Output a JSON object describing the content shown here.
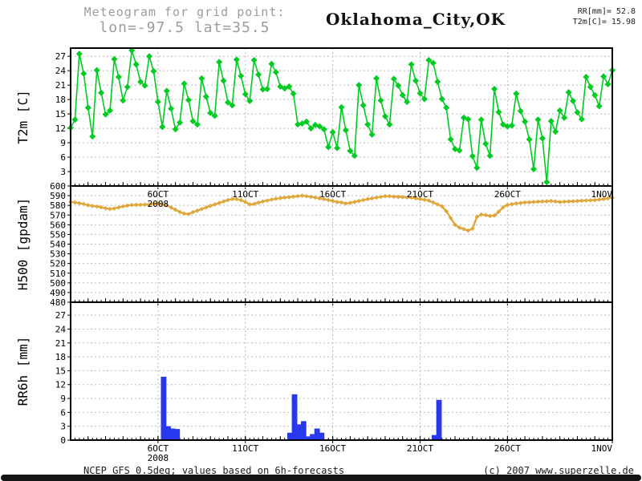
{
  "header": {
    "line1": "Meteogram for grid point:",
    "line2": "lon=-97.5 lat=35.5"
  },
  "title": "Oklahoma_City,OK",
  "readout": {
    "rr": "RR[mm]= 52.8",
    "t2m": "T2m[C]= 15.98"
  },
  "footer": {
    "left": "NCEP GFS 0.5deg; values based on 6h-forecasts",
    "right": "(c) 2007 www.superzelle.de"
  },
  "colors": {
    "t2m": "#00cc22",
    "h500": "#e0a83c",
    "rr6h": "#2838ee",
    "grid": "#b9b9b9",
    "axis": "#000000",
    "header_text": "#9c9c9c"
  },
  "chart_data": {
    "x": {
      "start": "1 OCT 2008 00Z",
      "step_hours": 6,
      "span_days": 31,
      "n_points": 125,
      "ticks": [
        {
          "day": 5,
          "label": "6OCT",
          "sublabel": "2008"
        },
        {
          "day": 10,
          "label": "11OCT"
        },
        {
          "day": 15,
          "label": "16OCT"
        },
        {
          "day": 20,
          "label": "21OCT"
        },
        {
          "day": 25,
          "label": "26OCT"
        },
        {
          "day": 31,
          "label": "1NOV"
        }
      ]
    },
    "panels": [
      {
        "type": "line",
        "name": "T2m",
        "ylabel": "T2m [C]",
        "ylim": [
          0,
          28.7
        ],
        "yticks": [
          3,
          6,
          9,
          12,
          15,
          18,
          21,
          24,
          27
        ],
        "marker": "diamond",
        "grid": true,
        "values": [
          12.1,
          13.8,
          27.5,
          23.4,
          16.3,
          10.3,
          24.1,
          19.4,
          14.9,
          15.7,
          26.4,
          22.7,
          17.8,
          20.6,
          28.2,
          25.3,
          21.7,
          20.9,
          27.0,
          23.9,
          17.5,
          12.3,
          19.8,
          16.1,
          11.8,
          13.2,
          21.3,
          17.9,
          13.5,
          12.8,
          22.4,
          18.6,
          15.2,
          14.6,
          25.8,
          21.9,
          17.4,
          16.8,
          26.3,
          22.9,
          19.1,
          17.7,
          26.2,
          23.2,
          20.1,
          20.2,
          25.4,
          23.7,
          20.7,
          20.3,
          20.7,
          19.2,
          12.8,
          13.0,
          13.4,
          12.0,
          12.7,
          12.4,
          11.8,
          8.1,
          11.2,
          7.9,
          16.4,
          11.6,
          7.3,
          6.3,
          21.0,
          16.8,
          12.8,
          10.7,
          22.4,
          17.8,
          14.5,
          12.8,
          22.3,
          20.9,
          18.9,
          17.5,
          25.3,
          21.9,
          19.3,
          18.1,
          26.2,
          25.6,
          21.7,
          18.1,
          16.3,
          9.7,
          7.7,
          7.4,
          14.2,
          13.9,
          6.2,
          3.8,
          13.8,
          8.8,
          6.3,
          20.2,
          15.4,
          12.8,
          12.4,
          12.6,
          19.2,
          15.6,
          13.4,
          9.7,
          3.5,
          13.8,
          9.9,
          0.8,
          13.5,
          11.3,
          15.7,
          14.2,
          19.5,
          17.7,
          15.3,
          13.9,
          22.7,
          20.6,
          18.9,
          16.6,
          22.8,
          21.2,
          24.1
        ]
      },
      {
        "type": "line",
        "name": "H500",
        "ylabel": "H500 [gpdam]",
        "ylim": [
          480,
          600
        ],
        "yticks": [
          480,
          490,
          500,
          510,
          520,
          530,
          540,
          550,
          560,
          570,
          580,
          590,
          600
        ],
        "marker": "diamond",
        "grid": true,
        "x_labels_inside_top": true,
        "values": [
          583.5,
          583.0,
          582.2,
          581.3,
          580.2,
          579.4,
          578.8,
          578.0,
          577.0,
          576.2,
          576.8,
          577.8,
          579.0,
          579.8,
          580.4,
          580.5,
          580.6,
          580.8,
          581.0,
          581.5,
          582.0,
          581.2,
          580.0,
          577.8,
          575.5,
          573.2,
          571.5,
          571.0,
          573.0,
          574.5,
          576.2,
          577.8,
          579.5,
          581.0,
          582.5,
          584.0,
          585.5,
          586.5,
          586.5,
          585.5,
          583.5,
          581.0,
          581.5,
          582.8,
          584.0,
          585.0,
          586.0,
          586.8,
          587.5,
          588.0,
          588.5,
          589.0,
          589.5,
          590.0,
          589.5,
          588.8,
          588.0,
          587.2,
          586.5,
          585.5,
          584.5,
          583.5,
          583.0,
          582.0,
          582.5,
          583.5,
          584.5,
          585.5,
          586.5,
          587.2,
          588.0,
          588.8,
          589.5,
          589.5,
          589.0,
          588.8,
          588.5,
          588.2,
          588.0,
          587.2,
          586.5,
          585.8,
          585.0,
          583.0,
          581.0,
          579.0,
          574.0,
          567.0,
          560.0,
          557.0,
          555.5,
          554.0,
          556.0,
          568.0,
          570.5,
          570.0,
          569.0,
          569.5,
          573.5,
          578.0,
          580.5,
          581.2,
          582.0,
          582.5,
          583.0,
          583.2,
          583.5,
          583.8,
          584.0,
          584.2,
          584.5,
          584.0,
          583.5,
          583.8,
          584.0,
          584.2,
          584.5,
          584.8,
          585.0,
          585.2,
          585.5,
          586.0,
          586.5,
          587.2,
          588.0
        ]
      },
      {
        "type": "bar",
        "name": "RR6h",
        "ylabel": "RR6h [mm]",
        "ylim": [
          0,
          29.8
        ],
        "yticks": [
          0,
          3,
          6,
          9,
          12,
          15,
          18,
          21,
          24,
          27
        ],
        "grid": true,
        "values": [
          0,
          0,
          0,
          0,
          0,
          0,
          0,
          0,
          0,
          0,
          0,
          0,
          0,
          0,
          0,
          0,
          0,
          0,
          0,
          0,
          13.7,
          3.0,
          2.5,
          2.4,
          0,
          0,
          0,
          0,
          0,
          0,
          0,
          0,
          0,
          0,
          0,
          0,
          0,
          0,
          0,
          0,
          0,
          0,
          0,
          0,
          0,
          0,
          0,
          0,
          1.6,
          9.9,
          3.4,
          4.1,
          0.8,
          1.3,
          2.5,
          1.6,
          0,
          0,
          0,
          0,
          0,
          0,
          0,
          0,
          0,
          0,
          0,
          0,
          0,
          0,
          0,
          0,
          0,
          0,
          0,
          0,
          0,
          0,
          0,
          0,
          1.1,
          8.7,
          0,
          0,
          0,
          0,
          0,
          0,
          0,
          0,
          0,
          0,
          0,
          0,
          0,
          0,
          0,
          0,
          0,
          0,
          0,
          0,
          0,
          0,
          0,
          0,
          0,
          0,
          0,
          0,
          0,
          0,
          0,
          0,
          0,
          0,
          0,
          0,
          0,
          0,
          0
        ]
      }
    ]
  }
}
